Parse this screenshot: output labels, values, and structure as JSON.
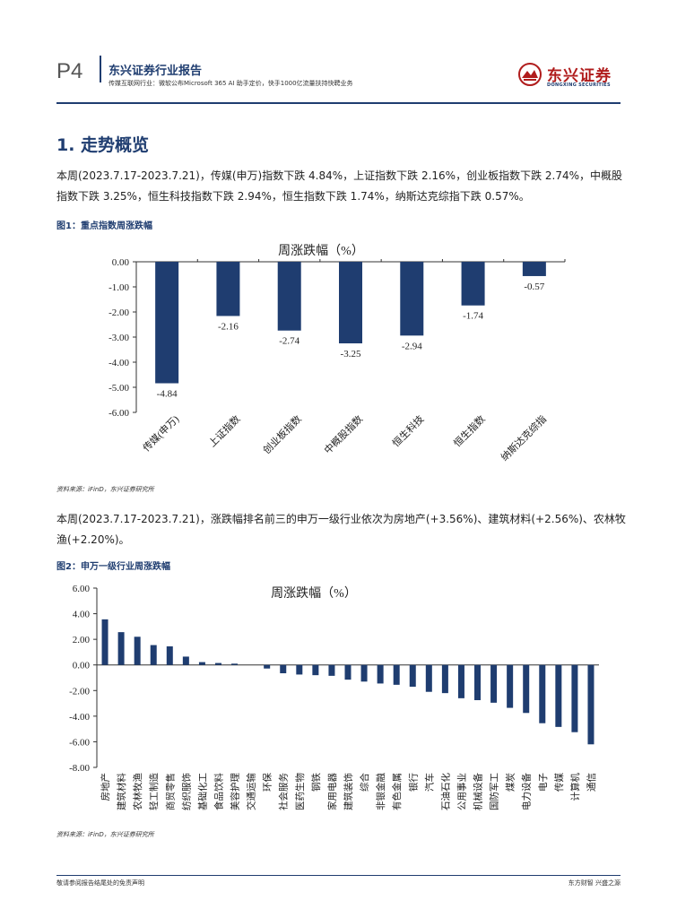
{
  "header": {
    "page_number": "P4",
    "report_type": "东兴证券行业报告",
    "subtitle": "传媒互联网行业：微软公布Microsoft 365 AI 助手定价，快手1000亿流量扶持快聘业务",
    "logo_cn": "东兴证券",
    "logo_en": "DONGXING SECURITIES"
  },
  "section": {
    "heading": "1. 走势概览",
    "para1": "本周(2023.7.17-2023.7.21)，传媒(申万)指数下跌 4.84%，上证指数下跌 2.16%，创业板指数下跌 2.74%，中概股指数下跌 3.25%，恒生科技指数下跌 2.94%，恒生指数下跌 1.74%，纳斯达克综指下跌 0.57%。",
    "fig1_caption": "图1：重点指数周涨跌幅",
    "fig1_source": "资料来源：iFinD，东兴证券研究所",
    "para2": "本周(2023.7.17-2023.7.21)，涨跌幅排名前三的申万一级行业依次为房地产(+3.56%)、建筑材料(+2.56%)、农林牧渔(+2.20%)。",
    "fig2_caption": "图2：申万一级行业周涨跌幅",
    "fig2_source": "资料来源：iFinD，东兴证券研究所"
  },
  "chart_data": [
    {
      "type": "bar",
      "title": "周涨跌幅（%）",
      "categories": [
        "传媒(申万)",
        "上证指数",
        "创业板指数",
        "中概股指数",
        "恒生科技",
        "恒生指数",
        "纳斯达克综指"
      ],
      "values": [
        -4.84,
        -2.16,
        -2.74,
        -3.25,
        -2.94,
        -1.74,
        -0.57
      ],
      "data_labels": [
        "-4.84",
        "-2.16",
        "-2.74",
        "-3.25",
        "-2.94",
        "-1.74",
        "-0.57"
      ],
      "ylim": [
        -6,
        0
      ],
      "yticks": [
        "0.00",
        "-1.00",
        "-2.00",
        "-3.00",
        "-4.00",
        "-5.00",
        "-6.00"
      ],
      "color": "#1f3d70",
      "xlabel": "",
      "ylabel": ""
    },
    {
      "type": "bar",
      "title": "周涨跌幅（%）",
      "categories": [
        "房地产",
        "建筑材料",
        "农林牧渔",
        "轻工制造",
        "商贸零售",
        "纺织服饰",
        "基础化工",
        "食品饮料",
        "美容护理",
        "交通运输",
        "环保",
        "社会服务",
        "医药生物",
        "钢铁",
        "家用电器",
        "建筑装饰",
        "综合",
        "非银金融",
        "有色金属",
        "银行",
        "汽车",
        "石油石化",
        "公用事业",
        "机械设备",
        "国防军工",
        "煤炭",
        "电力设备",
        "电子",
        "传媒",
        "计算机",
        "通信"
      ],
      "values": [
        3.56,
        2.56,
        2.2,
        1.55,
        1.45,
        0.65,
        0.22,
        0.15,
        0.1,
        0.0,
        -0.28,
        -0.65,
        -0.75,
        -0.8,
        -0.85,
        -1.15,
        -1.3,
        -1.45,
        -1.55,
        -1.7,
        -2.1,
        -2.2,
        -2.6,
        -2.75,
        -2.95,
        -3.35,
        -3.75,
        -4.55,
        -4.84,
        -5.25,
        -6.2
      ],
      "ylim": [
        -8,
        6
      ],
      "yticks": [
        "6.00",
        "4.00",
        "2.00",
        "0.00",
        "-2.00",
        "-4.00",
        "-6.00",
        "-8.00"
      ],
      "color": "#1f3d70",
      "xlabel": "",
      "ylabel": ""
    }
  ],
  "footer": {
    "left": "敬请参阅报告结尾处的免责声明",
    "right": "东方财智 兴盛之源"
  }
}
